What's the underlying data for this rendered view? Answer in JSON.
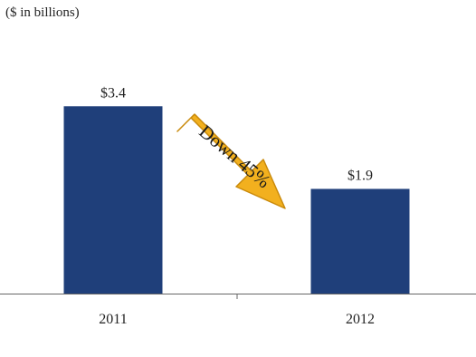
{
  "chart_data": {
    "type": "bar",
    "unit_label": "($ in billions)",
    "categories": [
      "2011",
      "2012"
    ],
    "values": [
      3.4,
      1.9
    ],
    "value_labels": [
      "$3.4",
      "$1.9"
    ],
    "ylim": [
      0,
      5.0
    ],
    "grid": false,
    "legend": "none",
    "annotation": {
      "text": "Down 45%",
      "shape": "arrow",
      "direction": "down-right"
    }
  },
  "colors": {
    "bar": "#1f3f7a",
    "arrow_fill": "#f2b01e",
    "arrow_stroke": "#c98a0c",
    "axis": "#666666",
    "text": "#222222"
  }
}
